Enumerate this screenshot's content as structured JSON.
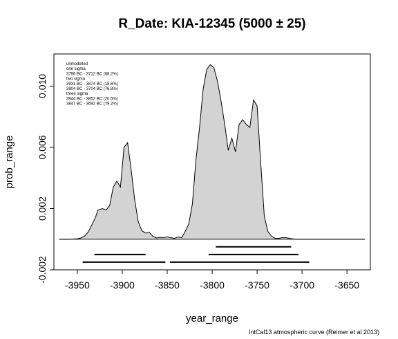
{
  "chart_data": {
    "type": "area",
    "title": "R_Date: KIA-12345 (5000  ±  25)",
    "xlabel": "year_range",
    "ylabel": "prob_range",
    "xlim": [
      -3976,
      -3624
    ],
    "ylim": [
      -0.002,
      0.0121
    ],
    "x_ticks": [
      -3950,
      -3900,
      -3850,
      -3800,
      -3750,
      -3700,
      -3650
    ],
    "x_tick_labels": [
      "-3950",
      "-3900",
      "-3850",
      "-3800",
      "-3750",
      "-3700",
      "-3650"
    ],
    "y_ticks": [
      -0.002,
      0.002,
      0.006,
      0.01
    ],
    "y_tick_labels": [
      "-0.002",
      "0.002",
      "0.006",
      "0.010"
    ],
    "fill_color": "#d3d3d3",
    "line_color": "#000000",
    "grid": false,
    "legend_placement": "top-left",
    "legend": [
      "unmodelled",
      "one sigma",
      "3796 BC - 3712 BC (68.2%)",
      "two sigma",
      "3931 BC - 3874 BC (18.6%)",
      "3804 BC - 3704 BC (76.8%)",
      "three sigma",
      "3944 BC - 3852 BC (20.5%)",
      "3847 BC - 3692 BC (79.2%)"
    ],
    "x": [
      -3970,
      -3960,
      -3955,
      -3950,
      -3946,
      -3942,
      -3938,
      -3934,
      -3930,
      -3927,
      -3922,
      -3918,
      -3914,
      -3910,
      -3906,
      -3902,
      -3898,
      -3894,
      -3890,
      -3886,
      -3882,
      -3878,
      -3874,
      -3870,
      -3866,
      -3862,
      -3858,
      -3854,
      -3850,
      -3846,
      -3842,
      -3838,
      -3834,
      -3830,
      -3826,
      -3822,
      -3818,
      -3814,
      -3810,
      -3806,
      -3802,
      -3798,
      -3794,
      -3790,
      -3786,
      -3782,
      -3778,
      -3774,
      -3770,
      -3766,
      -3762,
      -3758,
      -3754,
      -3750,
      -3746,
      -3742,
      -3738,
      -3734,
      -3730,
      -3726,
      -3722,
      -3718,
      -3714,
      -3710,
      -3706,
      -3702,
      -3698,
      -3694,
      -3690,
      -3686,
      -3682,
      -3678,
      -3674,
      -3670,
      -3666,
      -3662,
      -3658,
      -3654,
      -3650,
      -3645,
      -3640,
      -3630
    ],
    "y": [
      0,
      0,
      1e-05,
      3e-05,
      8e-05,
      0.0002,
      0.00045,
      0.0009,
      0.0014,
      0.0019,
      0.002,
      0.0019,
      0.0022,
      0.0034,
      0.0038,
      0.0034,
      0.006,
      0.0063,
      0.0045,
      0.0025,
      0.0011,
      0.00055,
      0.0004,
      0.00045,
      0.0002,
      8e-05,
      0.00012,
      0.0001,
      0.00015,
      0.0001,
      5e-05,
      0.00015,
      0.0001,
      0.0005,
      0.001,
      0.0023,
      0.0052,
      0.0073,
      0.0098,
      0.0111,
      0.0114,
      0.0112,
      0.0103,
      0.009,
      0.0075,
      0.0058,
      0.0066,
      0.0057,
      0.0075,
      0.0078,
      0.0075,
      0.0073,
      0.0091,
      0.0087,
      0.005,
      0.0015,
      0.0005,
      0.0002,
      5e-05,
      5e-05,
      0.0001,
      0.0001,
      5e-05,
      2e-05,
      0.0,
      0.0,
      0.0,
      0.0,
      0.0,
      0.0,
      0.0,
      0.0,
      0.0,
      0.0,
      0.0,
      0.0,
      0.0,
      0.0,
      0.0,
      0.0,
      0.0,
      0.0
    ],
    "sigma_ranges": [
      {
        "level": "one sigma",
        "start": -3796,
        "end": -3712,
        "y": -0.0005
      },
      {
        "level": "two sigma",
        "start": -3931,
        "end": -3874,
        "y": -0.001
      },
      {
        "level": "two sigma",
        "start": -3804,
        "end": -3704,
        "y": -0.001
      },
      {
        "level": "three sigma",
        "start": -3944,
        "end": -3852,
        "y": -0.0015
      },
      {
        "level": "three sigma",
        "start": -3847,
        "end": -3692,
        "y": -0.0015
      }
    ]
  },
  "footer": "IntCal13 atmospheric curve (Reimer et al 2013)"
}
